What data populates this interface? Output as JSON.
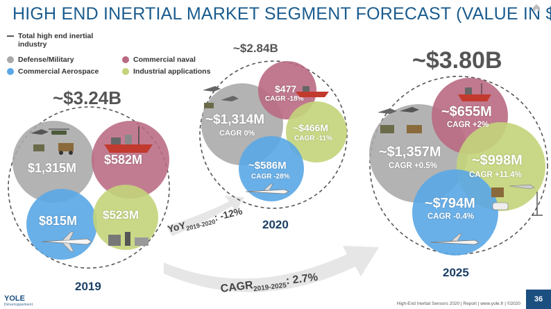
{
  "title": "HIGH END INERTIAL MARKET SEGMENT FORECAST (VALUE IN $M)",
  "legend": {
    "total": "Total high end inertial industry",
    "defense": "Defense/Military",
    "naval": "Commercial naval",
    "aero": "Commercial Aerospace",
    "industrial": "Industrial applications"
  },
  "colors": {
    "defense": "#a8a8a8",
    "naval": "#b96a82",
    "aero": "#5aa7e6",
    "industrial": "#c3d47a",
    "title": "#1a5c8f"
  },
  "y2019": {
    "year": "2019",
    "total": "~$3.24B",
    "defense": "$1,315M",
    "naval": "$582M",
    "aero": "$815M",
    "industrial": "$523M"
  },
  "y2020": {
    "year": "2020",
    "total": "~$2.84B",
    "defense": "~$1,314M",
    "defense_cagr": "CAGR 0%",
    "naval": "$477",
    "naval_cagr": "CAGR -18%",
    "industrial": "~$466M",
    "industrial_cagr": "CAGR -11%",
    "aero": "~$586M",
    "aero_cagr": "CAGR -28%"
  },
  "y2025": {
    "year": "2025",
    "total": "~$3.80B",
    "defense": "~$1,357M",
    "defense_cagr": "CAGR +0.5%",
    "naval": "~$655M",
    "naval_cagr": "CAGR +2%",
    "industrial": "~$998M",
    "industrial_cagr": "CAGR +11.4%",
    "aero": "~$794M",
    "aero_cagr": "CAGR -0.4%"
  },
  "growth": {
    "yoy_main": "YoY",
    "yoy_sub": "2019-2020",
    "yoy_value": ": -12%",
    "cagr_main": "CAGR",
    "cagr_sub": "2019-2025",
    "cagr_value": ": 2.7%"
  },
  "footer": {
    "text": "High-End Inertial Sensors 2020 | Report | www.yole.fr | ©2020",
    "page": "36",
    "logo_main": "YOLE",
    "logo_sub": "Développement"
  }
}
